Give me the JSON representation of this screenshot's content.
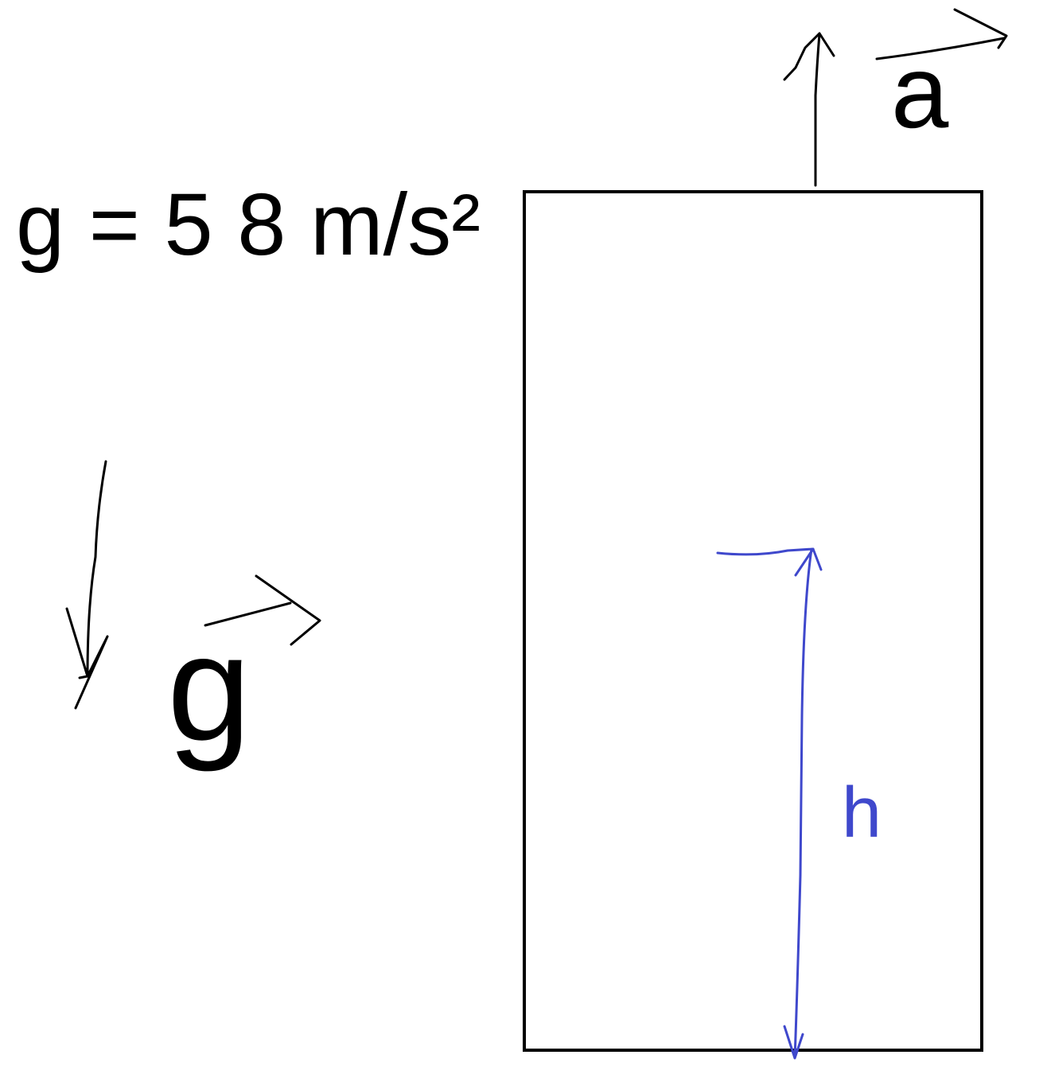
{
  "equation": "g = 5 8 m/s²",
  "vector_a": "a",
  "vector_g": "g",
  "height_label": "h"
}
